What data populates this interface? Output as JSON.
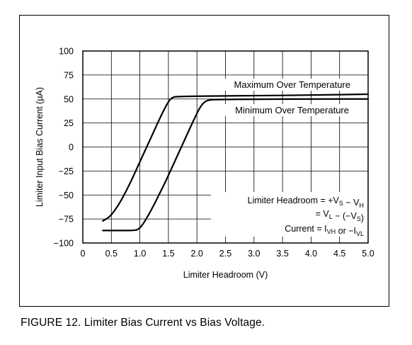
{
  "chart_data": {
    "type": "line",
    "xlabel": "Limiter Headroom (V)",
    "ylabel": "Limiter Input Bias Current (µA)",
    "xlim": [
      0,
      5.0
    ],
    "ylim": [
      -100,
      100
    ],
    "x_ticks": [
      0,
      0.5,
      1.0,
      1.5,
      2.0,
      2.5,
      3.0,
      3.5,
      4.0,
      4.5,
      5.0
    ],
    "x_tick_labels": [
      "0",
      "0.5",
      "1.0",
      "1.5",
      "2.0",
      "2.5",
      "3.0",
      "3.5",
      "4.0",
      "4.5",
      "5.0"
    ],
    "y_ticks": [
      -100,
      -75,
      -50,
      -25,
      0,
      25,
      50,
      75,
      100
    ],
    "y_tick_labels": [
      "−100",
      "−75",
      "−50",
      "−25",
      "0",
      "25",
      "50",
      "75",
      "100"
    ],
    "grid": true,
    "series": [
      {
        "name": "Maximum Over Temperature",
        "color": "#000000",
        "points": [
          [
            0.35,
            -77
          ],
          [
            0.45,
            -74
          ],
          [
            0.55,
            -67
          ],
          [
            0.65,
            -58
          ],
          [
            0.75,
            -47
          ],
          [
            0.85,
            -35
          ],
          [
            0.95,
            -22
          ],
          [
            1.05,
            -9
          ],
          [
            1.15,
            4
          ],
          [
            1.25,
            17
          ],
          [
            1.35,
            30
          ],
          [
            1.45,
            42
          ],
          [
            1.52,
            49
          ],
          [
            1.58,
            52
          ],
          [
            1.65,
            52.5
          ],
          [
            2.0,
            53
          ],
          [
            3.0,
            53.5
          ],
          [
            4.0,
            54
          ],
          [
            5.0,
            55
          ]
        ]
      },
      {
        "name": "Minimum Over Temperature",
        "color": "#000000",
        "points": [
          [
            0.35,
            -87
          ],
          [
            0.6,
            -87
          ],
          [
            0.9,
            -87
          ],
          [
            0.97,
            -86
          ],
          [
            1.05,
            -81
          ],
          [
            1.15,
            -71
          ],
          [
            1.25,
            -60
          ],
          [
            1.35,
            -48
          ],
          [
            1.45,
            -36
          ],
          [
            1.55,
            -23
          ],
          [
            1.65,
            -10
          ],
          [
            1.75,
            3
          ],
          [
            1.85,
            16
          ],
          [
            1.95,
            29
          ],
          [
            2.05,
            41
          ],
          [
            2.12,
            46.5
          ],
          [
            2.2,
            49
          ],
          [
            2.35,
            49.5
          ],
          [
            3.0,
            49.8
          ],
          [
            4.0,
            50
          ],
          [
            5.0,
            50
          ]
        ]
      }
    ],
    "annotations": [
      {
        "series_label": "Maximum Over Temperature"
      },
      {
        "series_label": "Minimum Over Temperature"
      }
    ],
    "legend_box_lines": [
      {
        "text": "Limiter Headroom = +V",
        "sub1": "S",
        "mid": " − V",
        "sub2": "H",
        "tail": ""
      },
      {
        "text": "= V",
        "sub1": "L",
        "mid": " − (−V",
        "sub2": "S",
        "tail": ")"
      },
      {
        "text": "Current = I",
        "sub1": "VH",
        "mid": " or −I",
        "sub2": "VL",
        "tail": ""
      }
    ]
  },
  "caption": "FIGURE 12. Limiter Bias Current vs Bias Voltage."
}
